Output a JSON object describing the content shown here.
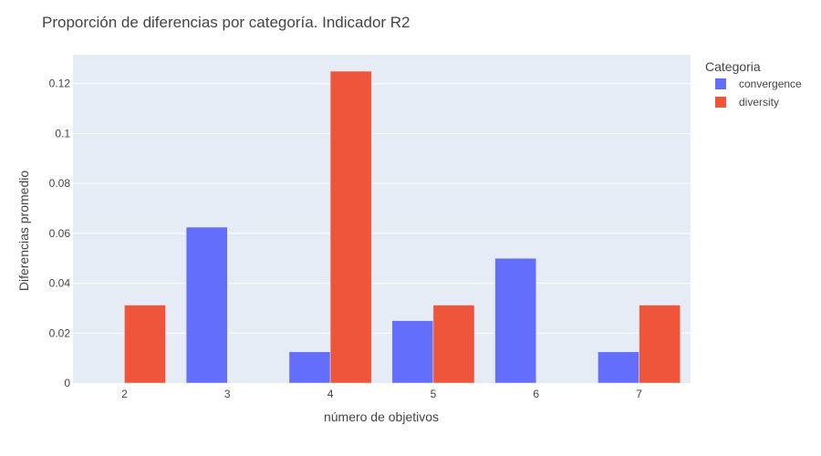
{
  "chart_data": {
    "type": "bar",
    "title": "Proporción de diferencias por categoría. Indicador R2",
    "xlabel": "número de objetivos",
    "ylabel": "Diferencias promedio",
    "categories": [
      "2",
      "3",
      "4",
      "5",
      "6",
      "7"
    ],
    "series": [
      {
        "name": "convergence",
        "color": "#636EFA",
        "values": [
          0,
          0.0625,
          0.0125,
          0.025,
          0.05,
          0.0125
        ]
      },
      {
        "name": "diversity",
        "color": "#EF553B",
        "values": [
          0.03125,
          0,
          0.125,
          0.03125,
          0,
          0.03125
        ]
      }
    ],
    "yticks": [
      0,
      0.02,
      0.04,
      0.06,
      0.08,
      0.1,
      0.12
    ],
    "ytick_labels": [
      "0",
      "0.02",
      "0.04",
      "0.06",
      "0.08",
      "0.1",
      "0.12"
    ],
    "ylim": [
      0,
      0.1316
    ],
    "grid": true,
    "legend": {
      "title": "Categoria",
      "placement": "top-right"
    },
    "colors": {
      "plot_background": "#E5ECF6",
      "grid": "#ffffff"
    }
  }
}
